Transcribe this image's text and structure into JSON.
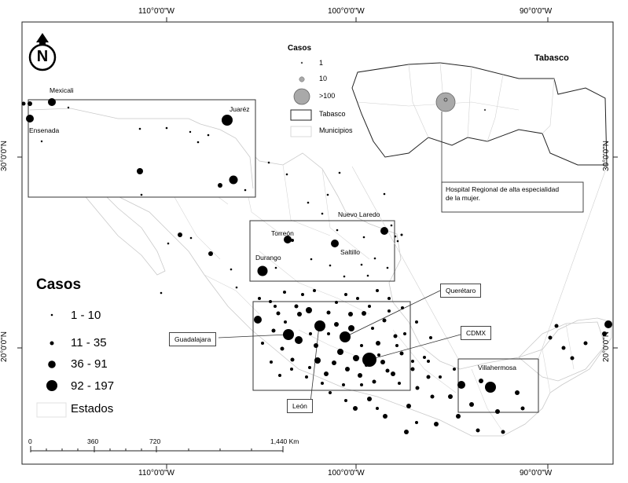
{
  "longitude_ticks": [
    "110°0'0\"W",
    "100°0'0\"W",
    "90°0'0\"W"
  ],
  "latitude_ticks": [
    "30°0'0\"N",
    "20°0'0\"N"
  ],
  "north_arrow": {
    "letter": "N"
  },
  "legend": {
    "title": "Casos",
    "classes": [
      {
        "label": "1 - 10"
      },
      {
        "label": "11 - 35"
      },
      {
        "label": "36 - 91"
      },
      {
        "label": "92 - 197"
      }
    ],
    "states_label": "Estados"
  },
  "inset_legend": {
    "title": "Casos",
    "items": [
      "1",
      "10",
      ">100",
      "Tabasco",
      "Municipios"
    ]
  },
  "tabasco_title": "Tabasco",
  "hospital_label": "Hospital Regional de alta especialidad de la mujer.",
  "hospital_label_line1": "Hospital Regional de alta especialidad",
  "hospital_label_line2": "de la mujer.",
  "places": {
    "mexicali": "Mexicali",
    "ensenada": "Ensenada",
    "juarez": "Juaréz",
    "nuevo_laredo": "Nuevo Laredo",
    "torreon": "Torreón",
    "saltillo": "Saltillo",
    "durango": "Durango",
    "villahermosa": "Villahermosa"
  },
  "callouts": {
    "queretaro": "Querétaro",
    "cdmx": "CDMX",
    "guadalajara": "Guadalajara",
    "leon": "León"
  },
  "scale": {
    "labels": [
      "0",
      "360",
      "720",
      "1,440 Km"
    ]
  }
}
